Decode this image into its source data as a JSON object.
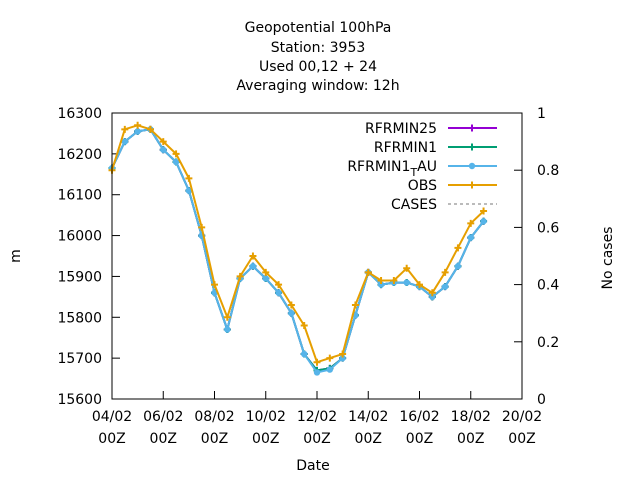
{
  "chart_data": {
    "type": "line",
    "title": [
      "Geopotential 100hPa",
      "Station:     3953",
      "Used  00,12  + 24",
      "Averaging window: 12h"
    ],
    "xlabel": "Date",
    "ylabel": "m",
    "y2label": "No cases",
    "xlim": [
      0,
      32
    ],
    "ylim": [
      15600,
      16300
    ],
    "y2lim": [
      0,
      1
    ],
    "x_ticks": [
      {
        "x": 0,
        "line1": "04/02",
        "line2": "00Z"
      },
      {
        "x": 4,
        "line1": "06/02",
        "line2": "00Z"
      },
      {
        "x": 8,
        "line1": "08/02",
        "line2": "00Z"
      },
      {
        "x": 12,
        "line1": "10/02",
        "line2": "00Z"
      },
      {
        "x": 16,
        "line1": "12/02",
        "line2": "00Z"
      },
      {
        "x": 20,
        "line1": "14/02",
        "line2": "00Z"
      },
      {
        "x": 24,
        "line1": "16/02",
        "line2": "00Z"
      },
      {
        "x": 28,
        "line1": "18/02",
        "line2": "00Z"
      },
      {
        "x": 32,
        "line1": "20/02",
        "line2": "00Z"
      }
    ],
    "y_ticks": [
      15600,
      15700,
      15800,
      15900,
      16000,
      16100,
      16200,
      16300
    ],
    "y2_ticks": [
      "0",
      "0.2",
      "0.4",
      "0.6",
      "0.8",
      "1"
    ],
    "legend_position": "top-right",
    "x": [
      0,
      1,
      2,
      3,
      4,
      5,
      6,
      7,
      8,
      9,
      10,
      11,
      12,
      13,
      14,
      15,
      16,
      17,
      18,
      19,
      20,
      21,
      22,
      23,
      24,
      25,
      26,
      27,
      28,
      29
    ],
    "series": [
      {
        "name": "RFRMIN25",
        "color": "#9400d3",
        "marker": "plus",
        "values": [
          16165,
          16230,
          16255,
          16260,
          16210,
          16180,
          16110,
          16000,
          15860,
          15770,
          15895,
          15925,
          15895,
          15860,
          15810,
          15710,
          15670,
          15675,
          15700,
          15805,
          15910,
          15880,
          15885,
          15885,
          15875,
          15850,
          15875,
          15925,
          15995,
          16035
        ]
      },
      {
        "name": "RFRMIN1",
        "color": "#009e73",
        "marker": "plus",
        "values": [
          16165,
          16230,
          16255,
          16260,
          16210,
          16180,
          16110,
          16000,
          15860,
          15770,
          15895,
          15925,
          15895,
          15860,
          15810,
          15710,
          15670,
          15675,
          15700,
          15805,
          15910,
          15880,
          15885,
          15885,
          15875,
          15850,
          15875,
          15925,
          15995,
          16035
        ]
      },
      {
        "name": "RFRMIN1_T AU",
        "name_parts": [
          "RFRMIN1",
          "T",
          "AU"
        ],
        "color": "#56b4e9",
        "marker": "circle",
        "values": [
          16165,
          16230,
          16255,
          16260,
          16210,
          16180,
          16110,
          16000,
          15860,
          15770,
          15895,
          15925,
          15895,
          15860,
          15810,
          15710,
          15665,
          15672,
          15700,
          15805,
          15910,
          15880,
          15885,
          15885,
          15875,
          15850,
          15875,
          15925,
          15995,
          16035
        ]
      },
      {
        "name": "OBS",
        "color": "#e69f00",
        "marker": "plus",
        "values": [
          16160,
          16260,
          16270,
          16260,
          16230,
          16200,
          16140,
          16020,
          15880,
          15800,
          15900,
          15950,
          15910,
          15880,
          15830,
          15780,
          15690,
          15700,
          15710,
          15830,
          15910,
          15890,
          15890,
          15920,
          15880,
          15860,
          15910,
          15970,
          16030,
          16060
        ]
      },
      {
        "name": "CASES",
        "color": "#777777",
        "dashed": true,
        "axis": "y2",
        "values": [
          1,
          1,
          1,
          1,
          1,
          1,
          1,
          1,
          1,
          1,
          1,
          1,
          1,
          1,
          1,
          1,
          1,
          1,
          1,
          1,
          1,
          1,
          1,
          1,
          1,
          1,
          1,
          1,
          1,
          1
        ]
      }
    ]
  }
}
